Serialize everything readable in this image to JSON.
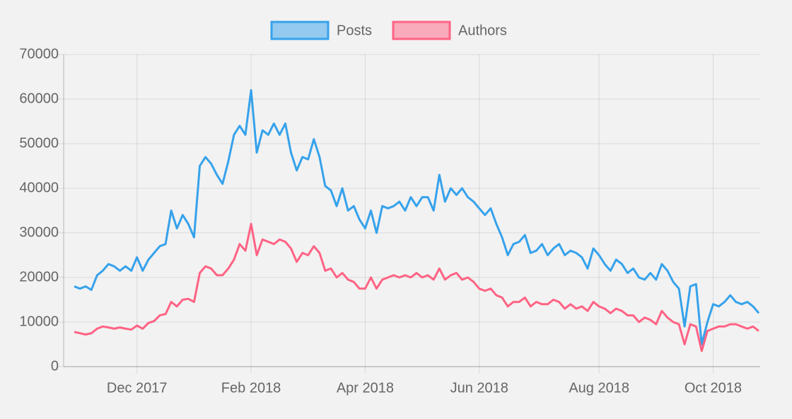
{
  "chart_data": {
    "type": "line",
    "categories": [
      null,
      null,
      null,
      null,
      null,
      null,
      null,
      null,
      null,
      null,
      null,
      "Dec 2017",
      null,
      null,
      null,
      null,
      null,
      null,
      null,
      null,
      null,
      null,
      null,
      null,
      null,
      null,
      null,
      null,
      null,
      null,
      null,
      "Feb 2018",
      null,
      null,
      null,
      null,
      null,
      null,
      null,
      null,
      null,
      null,
      null,
      null,
      null,
      null,
      null,
      null,
      null,
      null,
      null,
      "Apr 2018",
      null,
      null,
      null,
      null,
      null,
      null,
      null,
      null,
      null,
      null,
      null,
      null,
      null,
      null,
      null,
      null,
      null,
      null,
      null,
      "Jun 2018",
      null,
      null,
      null,
      null,
      null,
      null,
      null,
      null,
      null,
      null,
      null,
      null,
      null,
      null,
      null,
      null,
      null,
      null,
      null,
      null,
      "Aug 2018",
      null,
      null,
      null,
      null,
      null,
      null,
      null,
      null,
      null,
      null,
      null,
      null,
      null,
      null,
      null,
      null,
      null,
      null,
      null,
      "Oct 2018",
      null,
      null,
      null,
      null,
      null,
      null,
      null,
      null
    ],
    "series": [
      {
        "name": "Posts",
        "color": "#36a2eb",
        "values": [
          18000,
          17500,
          18000,
          17200,
          20500,
          21500,
          23000,
          22500,
          21500,
          22500,
          21500,
          24500,
          21500,
          24000,
          25500,
          27000,
          27500,
          35000,
          31000,
          34000,
          32000,
          29000,
          45000,
          47000,
          45500,
          43000,
          41000,
          46000,
          52000,
          54000,
          52000,
          62000,
          48000,
          53000,
          52000,
          54500,
          52000,
          54500,
          48000,
          44000,
          47000,
          46500,
          51000,
          47000,
          40500,
          39500,
          36000,
          40000,
          35000,
          36000,
          33000,
          31000,
          35000,
          30000,
          36000,
          35500,
          36000,
          37000,
          35000,
          38000,
          36000,
          38000,
          38000,
          35000,
          43000,
          37000,
          40000,
          38500,
          40000,
          38000,
          37000,
          35500,
          34000,
          35500,
          32000,
          29000,
          25000,
          27500,
          28000,
          29500,
          25500,
          26000,
          27500,
          25000,
          26500,
          27500,
          25000,
          26000,
          25500,
          24500,
          22000,
          26500,
          25000,
          23000,
          21500,
          24000,
          23000,
          21000,
          22000,
          20000,
          19500,
          21000,
          19500,
          23000,
          21500,
          19000,
          17500,
          9000,
          18000,
          18500,
          5000,
          10000,
          14000,
          13500,
          14500,
          16000,
          14500,
          14000,
          14500,
          13500,
          12000
        ]
      },
      {
        "name": "Authors",
        "color": "#ff6384",
        "values": [
          7800,
          7500,
          7200,
          7500,
          8500,
          9000,
          8800,
          8500,
          8800,
          8500,
          8300,
          9200,
          8500,
          9800,
          10200,
          11500,
          11800,
          14500,
          13500,
          15000,
          15200,
          14500,
          21000,
          22500,
          22000,
          20500,
          20500,
          22000,
          24000,
          27500,
          26000,
          32000,
          25000,
          28500,
          28000,
          27500,
          28500,
          28000,
          26500,
          23500,
          25500,
          25000,
          27000,
          25500,
          21500,
          22000,
          20000,
          21000,
          19500,
          19000,
          17500,
          17500,
          20000,
          17500,
          19500,
          20000,
          20500,
          20000,
          20500,
          20000,
          21000,
          20000,
          20500,
          19500,
          22000,
          19500,
          20500,
          21000,
          19500,
          20000,
          19000,
          17500,
          17000,
          17500,
          16000,
          15500,
          13500,
          14500,
          14500,
          15500,
          13500,
          14500,
          14000,
          14000,
          15000,
          14500,
          13000,
          14000,
          13000,
          13500,
          12500,
          14500,
          13500,
          13000,
          12000,
          13000,
          12500,
          11500,
          11500,
          10000,
          11000,
          10500,
          9500,
          12500,
          11000,
          10000,
          9500,
          5000,
          9500,
          9000,
          3500,
          8000,
          8500,
          9000,
          9000,
          9500,
          9500,
          9000,
          8500,
          9000,
          8000
        ]
      }
    ],
    "ylim": [
      0,
      70000
    ],
    "yticks": [
      0,
      10000,
      20000,
      30000,
      40000,
      50000,
      60000,
      70000
    ],
    "grid": true,
    "legend": "top"
  }
}
